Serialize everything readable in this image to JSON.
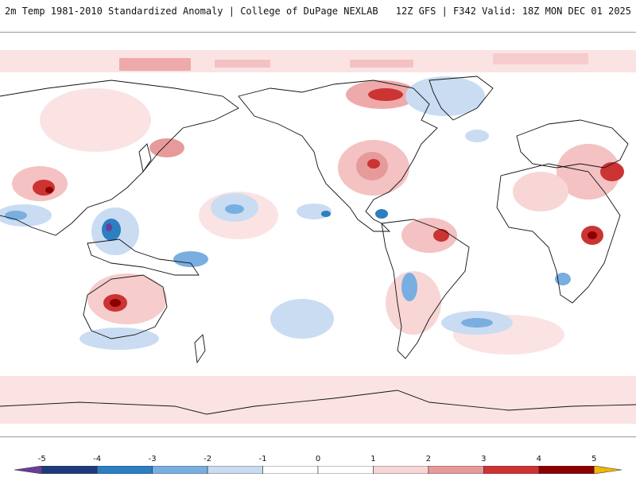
{
  "header": {
    "left_title": "2m Temp 1981-2010 Standardized Anomaly | College of DuPage NEXLAB",
    "right_title": "12Z GFS | F342 Valid: 18Z MON DEC 01 2025"
  },
  "colorbar": {
    "ticks": [
      "-5",
      "-4",
      "-3",
      "-2",
      "-1",
      "0",
      "1",
      "2",
      "3",
      "4",
      "5"
    ],
    "min": -5.5,
    "max": 5.5,
    "colors": {
      "lt_m5": "#6a3d9a",
      "m5_m4": "#1f3a7a",
      "m4_m3": "#2c7fc0",
      "m3_m2": "#79aee0",
      "m2_m1": "#c9dcf2",
      "m1_0": "#ffffff",
      "0_1": "#ffffff",
      "1_2": "#f8d6d6",
      "2_3": "#e79a9a",
      "3_4": "#cc3333",
      "4_5": "#8b0000",
      "gt_5": "#f2b705"
    }
  }
}
